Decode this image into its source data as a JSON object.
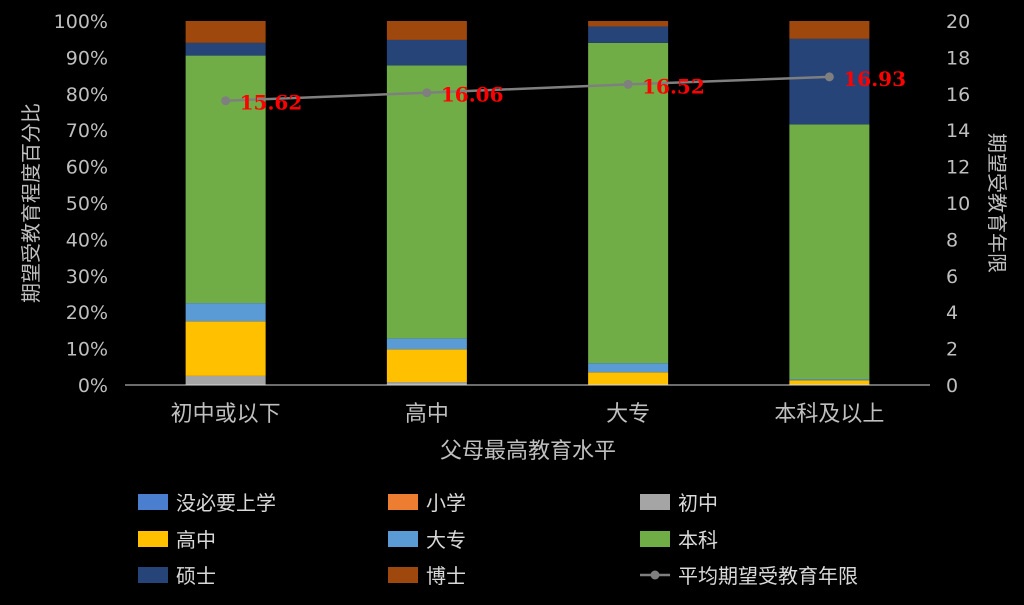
{
  "chart_data": {
    "type": "bar",
    "stacked": true,
    "percent": true,
    "categories": [
      "初中或以下",
      "高中",
      "大专",
      "本科及以上"
    ],
    "xlabel": "父母最高教育水平",
    "ylabel_left": "期望受教育程度百分比",
    "ylabel_right": "期望受教育年限",
    "ylim_left": [
      0,
      100
    ],
    "ylim_right": [
      0,
      20
    ],
    "yticks_left": [
      "0%",
      "10%",
      "20%",
      "30%",
      "40%",
      "50%",
      "60%",
      "70%",
      "80%",
      "90%",
      "100%"
    ],
    "yticks_right": [
      "0",
      "2",
      "4",
      "6",
      "8",
      "10",
      "12",
      "14",
      "16",
      "18",
      "20"
    ],
    "series": [
      {
        "name": "没必要上学",
        "color": "#4a7fd0",
        "values": [
          0,
          0,
          0,
          0
        ]
      },
      {
        "name": "小学",
        "color": "#ed7d31",
        "values": [
          0,
          0,
          0,
          0
        ]
      },
      {
        "name": "初中",
        "color": "#a5a5a5",
        "values": [
          2.5,
          0.8,
          0,
          0
        ]
      },
      {
        "name": "高中",
        "color": "#ffc000",
        "values": [
          15,
          9,
          3.5,
          1.3
        ]
      },
      {
        "name": "大专",
        "color": "#5b9bd5",
        "values": [
          5,
          3,
          2.5,
          0.3
        ]
      },
      {
        "name": "本科",
        "color": "#70ad47",
        "values": [
          68,
          75,
          88,
          70
        ]
      },
      {
        "name": "硕士",
        "color": "#264478",
        "values": [
          3.5,
          7,
          4.5,
          23.5
        ]
      },
      {
        "name": "博士",
        "color": "#9e480e",
        "values": [
          6,
          5.2,
          1.5,
          4.9
        ]
      }
    ],
    "line_series": {
      "name": "平均期望受教育年限",
      "color": "#7f7f7f",
      "values": [
        15.62,
        16.06,
        16.52,
        16.93
      ],
      "labels": [
        "15.62",
        "16.06",
        "16.52",
        "16.93"
      ]
    },
    "legend_position": "bottom"
  }
}
